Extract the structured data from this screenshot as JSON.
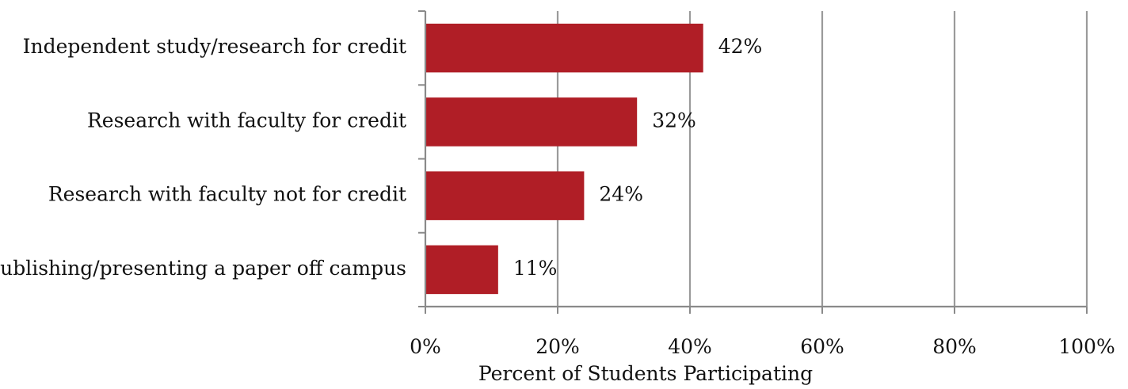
{
  "chart_data": {
    "type": "bar",
    "orientation": "horizontal",
    "categories": [
      "Independent study/research for credit",
      "Research with faculty for credit",
      "Research with faculty not for credit",
      "Publishing/presenting a paper off campus"
    ],
    "values": [
      42,
      32,
      24,
      11
    ],
    "value_labels": [
      "42%",
      "32%",
      "24%",
      "11%"
    ],
    "bar_color": "#b01e26",
    "xlabel": "Percent of Students Participating",
    "ylabel": "",
    "title": "",
    "xlim": [
      0,
      100
    ],
    "x_ticks": [
      0,
      20,
      40,
      60,
      80,
      100
    ],
    "x_tick_labels": [
      "0%",
      "20%",
      "40%",
      "60%",
      "80%",
      "100%"
    ],
    "grid": "vertical",
    "legend": "none"
  }
}
